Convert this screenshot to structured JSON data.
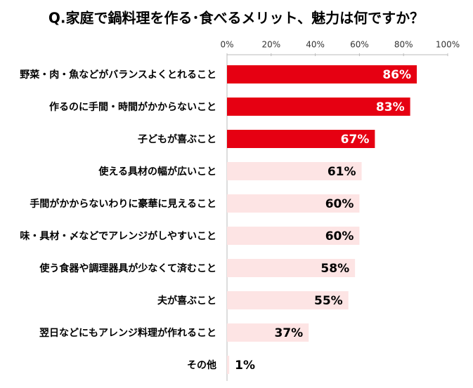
{
  "chart_data": {
    "type": "bar",
    "orientation": "horizontal",
    "title": "Q.家庭で鍋料理を作る･食べるメリット、魅力は何ですか？",
    "categories": [
      "野菜・肉・魚などがバランスよくとれること",
      "作るのに手間・時間がかからないこと",
      "子どもが喜ぶこと",
      "使える具材の幅が広いこと",
      "手間がかからないわりに豪華に見えること",
      "味・具材・〆などでアレンジがしやすいこと",
      "使う食器や調理器具が少なくて済むこと",
      "夫が喜ぶこと",
      "翌日などにもアレンジ料理が作れること",
      "その他"
    ],
    "values": [
      86,
      83,
      67,
      61,
      60,
      60,
      58,
      55,
      37,
      1
    ],
    "value_labels": [
      "86%",
      "83%",
      "67%",
      "61%",
      "60%",
      "60%",
      "58%",
      "55%",
      "37%",
      "1%"
    ],
    "colors": [
      "#e60012",
      "#e60012",
      "#e60012",
      "#fde4e4",
      "#fde4e4",
      "#fde4e4",
      "#fde4e4",
      "#fde4e4",
      "#fde4e4",
      "#fde4e4"
    ],
    "xlim": [
      0,
      100
    ],
    "xticks": [
      {
        "value": 0,
        "label": "0%"
      },
      {
        "value": 20,
        "label": "20%"
      },
      {
        "value": 40,
        "label": "40%"
      },
      {
        "value": 60,
        "label": "60%"
      },
      {
        "value": 80,
        "label": "80%"
      },
      {
        "value": 100,
        "label": "100%"
      }
    ],
    "grid": false
  }
}
